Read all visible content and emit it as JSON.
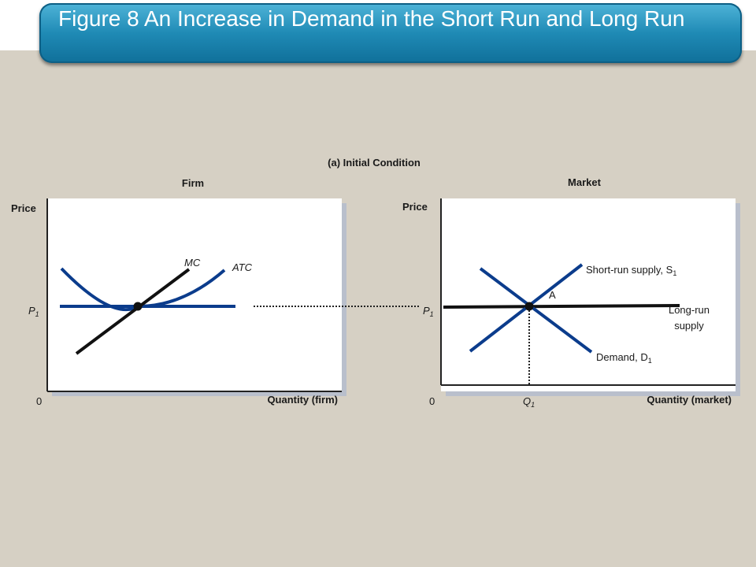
{
  "slide": {
    "title": "Figure 8 An Increase in Demand in the Short Run and Long Run"
  },
  "panel": {
    "heading": "(a) Initial Condition"
  },
  "firm": {
    "title": "Firm",
    "y_axis_label": "Price",
    "x_axis_label": "Quantity (firm)",
    "origin_label": "0",
    "price_label": "P",
    "price_sub": "1",
    "mc_label": "MC",
    "atc_label": "ATC"
  },
  "market": {
    "title": "Market",
    "y_axis_label": "Price",
    "x_axis_label": "Quantity (market)",
    "origin_label": "0",
    "price_label": "P",
    "price_sub": "1",
    "quantity_label": "Q",
    "quantity_sub": "1",
    "point_label": "A",
    "short_run_supply_label": "Short-run supply, S",
    "short_run_supply_sub": "1",
    "long_run_supply_line1": "Long-run",
    "long_run_supply_line2": "supply",
    "demand_label": "Demand, D",
    "demand_sub": "1"
  },
  "colors": {
    "curve_blue": "#0b3c8c",
    "curve_black": "#111111",
    "title_bar": "#1f8ab5"
  }
}
